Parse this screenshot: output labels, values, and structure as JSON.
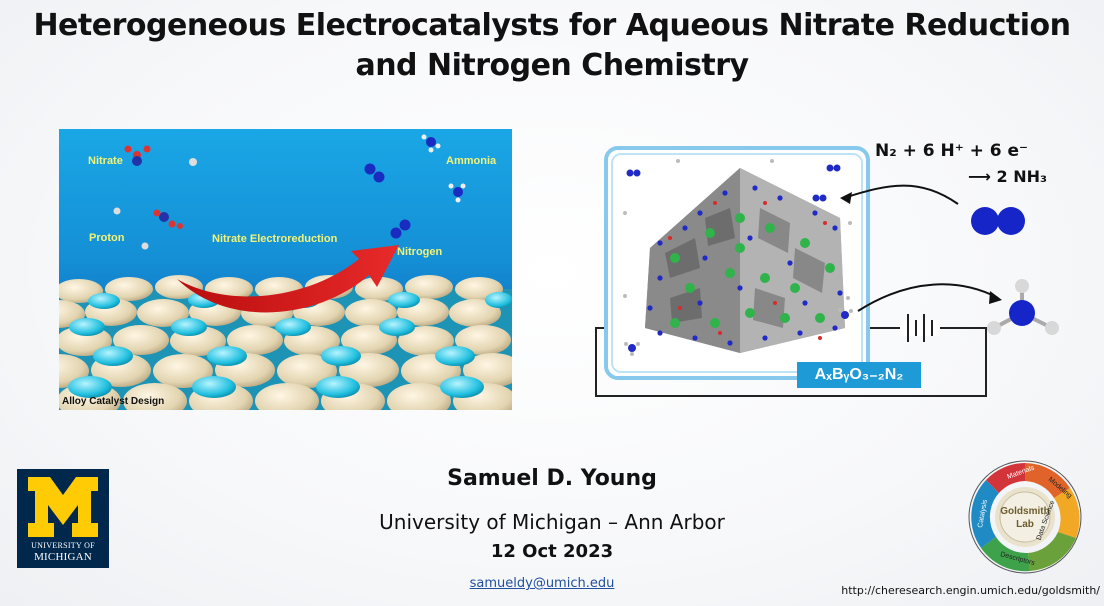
{
  "title": {
    "line1": "Heterogeneous Electrocatalysts for Aqueous Nitrate Reduction",
    "line2": "and Nitrogen Chemistry"
  },
  "left_figure": {
    "labels": {
      "nitrate": "Nitrate",
      "ammonia": "Ammonia",
      "proton": "Proton",
      "process": "Nitrate Electroreduction",
      "nitrogen": "Nitrogen"
    },
    "caption": "Alloy Catalyst Design"
  },
  "right_figure": {
    "eq_left": "N₂ + 6 H⁺ + 6 e⁻",
    "eq_right": "⟶ 2 NH₃",
    "formula": "AₓBᵧO₃₋₂N₂"
  },
  "author": "Samuel D. Young",
  "affiliation": "University of Michigan – Ann Arbor",
  "date": "12 Oct 2023",
  "email": "samueldy@umich.edu",
  "url": "http://cheresearch.engin.umich.edu/goldsmith/",
  "um_logo": {
    "line1": "UNIVERSITY OF",
    "line2": "MICHIGAN",
    "color": "#00274c",
    "maize": "#ffcb05"
  },
  "lab_logo": {
    "center_line1": "Goldsmith",
    "center_line2": "Lab",
    "segments": [
      "Materials",
      "Modeling",
      "Data Science",
      "Descriptors",
      "Catalysis"
    ]
  }
}
